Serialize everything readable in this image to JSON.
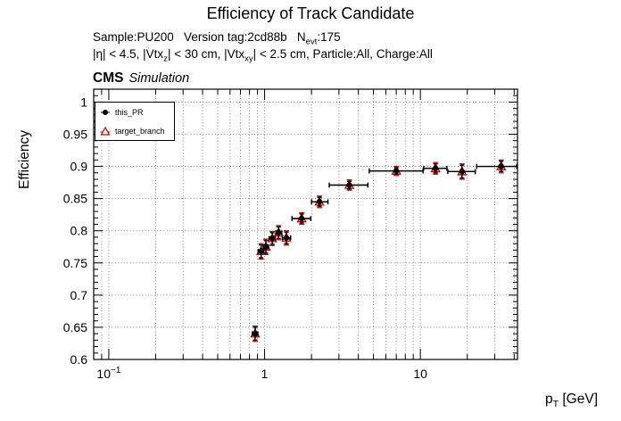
{
  "header": {
    "title": "Efficiency of Track Candidate",
    "sub1_a": "Sample:PU200   Version tag:2cd88b   N",
    "sub1_sub": "evt",
    "sub1_b": ":175",
    "sub2_a": "|η| < 4.5, |Vtx",
    "sub2_sub1": "z",
    "sub2_b": "| < 30 cm, |Vtx",
    "sub2_sub2": "xy",
    "sub2_c": "| < 2.5 cm, Particle:All, Charge:All",
    "cms": "CMS",
    "sim": "Simulation"
  },
  "legend": {
    "entries": [
      {
        "label": "this_PR",
        "marker": "filled-circle",
        "color": "#000000"
      },
      {
        "label": "target_branch",
        "marker": "open-triangle",
        "color": "#cc0000"
      }
    ]
  },
  "axes": {
    "y_title": "Efficiency",
    "x_title_main": "p",
    "x_title_sub": "T",
    "x_title_rest": " [GeV]",
    "x_ticks": [
      {
        "value": 0.1,
        "label": "10",
        "exp": "−1"
      },
      {
        "value": 1,
        "label": "1",
        "exp": ""
      },
      {
        "value": 10,
        "label": "10",
        "exp": ""
      }
    ],
    "y_ticks": [
      {
        "value": 0.6,
        "label": "0.6"
      },
      {
        "value": 0.65,
        "label": "0.65"
      },
      {
        "value": 0.7,
        "label": "0.7"
      },
      {
        "value": 0.75,
        "label": "0.75"
      },
      {
        "value": 0.8,
        "label": "0.8"
      },
      {
        "value": 0.85,
        "label": "0.85"
      },
      {
        "value": 0.9,
        "label": "0.9"
      },
      {
        "value": 0.95,
        "label": "0.95"
      },
      {
        "value": 1,
        "label": "1"
      }
    ]
  },
  "chart_data": {
    "type": "scatter",
    "title": "Efficiency of Track Candidate",
    "xlabel": "p_T [GeV]",
    "ylabel": "Efficiency",
    "x_scale": "log",
    "xlim": [
      0.08,
      42
    ],
    "ylim": [
      0.6,
      1.02
    ],
    "grid": true,
    "legend_position": "top-left",
    "series": [
      {
        "name": "this_PR",
        "marker": "filled-circle",
        "color": "#000000",
        "points": [
          {
            "x": 0.87,
            "xlo": 0.835,
            "xhi": 0.905,
            "y": 0.64,
            "yerr": 0.01
          },
          {
            "x": 0.95,
            "xlo": 0.91,
            "xhi": 0.99,
            "y": 0.768,
            "yerr": 0.01
          },
          {
            "x": 1.02,
            "xlo": 0.98,
            "xhi": 1.06,
            "y": 0.775,
            "yerr": 0.01
          },
          {
            "x": 1.12,
            "xlo": 1.07,
            "xhi": 1.17,
            "y": 0.788,
            "yerr": 0.009
          },
          {
            "x": 1.23,
            "xlo": 1.18,
            "xhi": 1.29,
            "y": 0.797,
            "yerr": 0.009
          },
          {
            "x": 1.38,
            "xlo": 1.3,
            "xhi": 1.47,
            "y": 0.789,
            "yerr": 0.009
          },
          {
            "x": 1.73,
            "xlo": 1.5,
            "xhi": 1.98,
            "y": 0.819,
            "yerr": 0.007
          },
          {
            "x": 2.25,
            "xlo": 2.0,
            "xhi": 2.55,
            "y": 0.845,
            "yerr": 0.007
          },
          {
            "x": 3.5,
            "xlo": 2.6,
            "xhi": 4.6,
            "y": 0.871,
            "yerr": 0.006
          },
          {
            "x": 7.0,
            "xlo": 4.7,
            "xhi": 10.4,
            "y": 0.893,
            "yerr": 0.005
          },
          {
            "x": 12.5,
            "xlo": 10.5,
            "xhi": 14.8,
            "y": 0.897,
            "yerr": 0.007
          },
          {
            "x": 18.5,
            "xlo": 15.0,
            "xhi": 22.5,
            "y": 0.892,
            "yerr": 0.01
          },
          {
            "x": 33.0,
            "xlo": 23.0,
            "xhi": 41.5,
            "y": 0.9,
            "yerr": 0.008
          }
        ]
      },
      {
        "name": "target_branch",
        "marker": "open-triangle",
        "color": "#cc0000",
        "points": [
          {
            "x": 0.87,
            "xlo": 0.835,
            "xhi": 0.905,
            "y": 0.64,
            "yerr": 0.012
          },
          {
            "x": 0.95,
            "xlo": 0.91,
            "xhi": 0.99,
            "y": 0.768,
            "yerr": 0.012
          },
          {
            "x": 1.02,
            "xlo": 0.98,
            "xhi": 1.06,
            "y": 0.775,
            "yerr": 0.012
          },
          {
            "x": 1.12,
            "xlo": 1.07,
            "xhi": 1.17,
            "y": 0.788,
            "yerr": 0.011
          },
          {
            "x": 1.23,
            "xlo": 1.18,
            "xhi": 1.29,
            "y": 0.797,
            "yerr": 0.011
          },
          {
            "x": 1.38,
            "xlo": 1.3,
            "xhi": 1.47,
            "y": 0.789,
            "yerr": 0.011
          },
          {
            "x": 1.73,
            "xlo": 1.5,
            "xhi": 1.98,
            "y": 0.819,
            "yerr": 0.009
          },
          {
            "x": 2.25,
            "xlo": 2.0,
            "xhi": 2.55,
            "y": 0.845,
            "yerr": 0.009
          },
          {
            "x": 3.5,
            "xlo": 2.6,
            "xhi": 4.6,
            "y": 0.871,
            "yerr": 0.008
          },
          {
            "x": 7.0,
            "xlo": 4.7,
            "xhi": 10.4,
            "y": 0.893,
            "yerr": 0.007
          },
          {
            "x": 12.5,
            "xlo": 10.5,
            "xhi": 14.8,
            "y": 0.897,
            "yerr": 0.009
          },
          {
            "x": 18.5,
            "xlo": 15.0,
            "xhi": 22.5,
            "y": 0.892,
            "yerr": 0.012
          },
          {
            "x": 33.0,
            "xlo": 23.0,
            "xhi": 41.5,
            "y": 0.9,
            "yerr": 0.01
          }
        ]
      }
    ]
  }
}
